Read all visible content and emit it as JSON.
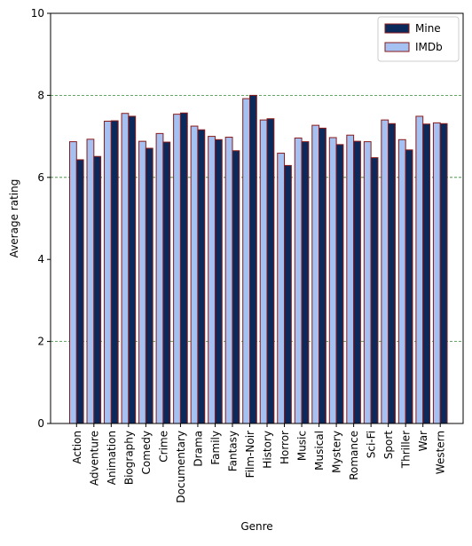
{
  "chart_data": {
    "type": "bar",
    "title": "",
    "xlabel": "Genre",
    "ylabel": "Average rating",
    "ylim": [
      0,
      10
    ],
    "yticks": [
      0,
      2,
      4,
      6,
      8,
      10
    ],
    "grid": "horizontal dashed at 2, 6, 8",
    "legend_position": "top-right",
    "categories": [
      "Action",
      "Adventure",
      "Animation",
      "Biography",
      "Comedy",
      "Crime",
      "Documentary",
      "Drama",
      "Family",
      "Fantasy",
      "Film-Noir",
      "History",
      "Horror",
      "Music",
      "Musical",
      "Mystery",
      "Romance",
      "Sci-Fi",
      "Sport",
      "Thriller",
      "War",
      "Western"
    ],
    "series": [
      {
        "name": "Mine",
        "color": "#0b2a5b",
        "edge_color": "#8b1a1a",
        "values": [
          6.43,
          6.51,
          7.38,
          7.49,
          6.71,
          6.86,
          7.57,
          7.16,
          6.92,
          6.65,
          8.0,
          7.43,
          6.29,
          6.87,
          7.2,
          6.8,
          6.88,
          6.48,
          7.31,
          6.67,
          7.3,
          7.31
        ]
      },
      {
        "name": "IMDb",
        "color": "#a4c1f2",
        "edge_color": "#8b1a1a",
        "values": [
          6.87,
          6.93,
          7.37,
          7.56,
          6.88,
          7.07,
          7.54,
          7.25,
          7.0,
          6.98,
          7.92,
          7.4,
          6.59,
          6.96,
          7.27,
          6.97,
          7.03,
          6.87,
          7.4,
          6.92,
          7.49,
          7.33
        ]
      }
    ]
  }
}
